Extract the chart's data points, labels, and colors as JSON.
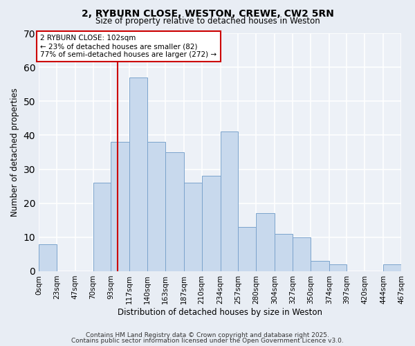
{
  "title1": "2, RYBURN CLOSE, WESTON, CREWE, CW2 5RN",
  "title2": "Size of property relative to detached houses in Weston",
  "xlabel": "Distribution of detached houses by size in Weston",
  "ylabel": "Number of detached properties",
  "bar_color": "#c8d9ed",
  "bar_edge_color": "#7ba3cc",
  "annotation_box_color": "#cc0000",
  "vline_color": "#cc0000",
  "annotation_text": "2 RYBURN CLOSE: 102sqm\n← 23% of detached houses are smaller (82)\n77% of semi-detached houses are larger (272) →",
  "property_size": 102,
  "bins": [
    0,
    23,
    47,
    70,
    93,
    117,
    140,
    163,
    187,
    210,
    234,
    257,
    280,
    304,
    327,
    350,
    374,
    397,
    420,
    444,
    467
  ],
  "counts": [
    8,
    0,
    0,
    26,
    38,
    57,
    38,
    35,
    26,
    28,
    41,
    13,
    17,
    11,
    10,
    3,
    2,
    0,
    0,
    2
  ],
  "tick_labels": [
    "0sqm",
    "23sqm",
    "47sqm",
    "70sqm",
    "93sqm",
    "117sqm",
    "140sqm",
    "163sqm",
    "187sqm",
    "210sqm",
    "234sqm",
    "257sqm",
    "280sqm",
    "304sqm",
    "327sqm",
    "350sqm",
    "374sqm",
    "397sqm",
    "420sqm",
    "444sqm",
    "467sqm"
  ],
  "ylim": [
    0,
    70
  ],
  "yticks": [
    0,
    10,
    20,
    30,
    40,
    50,
    60,
    70
  ],
  "footer1": "Contains HM Land Registry data © Crown copyright and database right 2025.",
  "footer2": "Contains public sector information licensed under the Open Government Licence v3.0.",
  "background_color": "#e8edf4",
  "plot_bg_color": "#edf1f7"
}
